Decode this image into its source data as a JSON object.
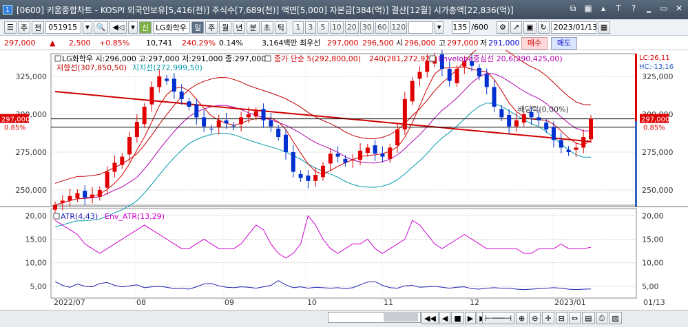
{
  "window": {
    "app_number": "1",
    "title": "[0600] 키움종합차트 - KOSPI 외국인보유[5,416(천)] 주식수[7,689(천)] 액면[5,000] 자본금[384(억)] 결산[12월] 시가총액[22,836(억)]"
  },
  "toolbar": {
    "period_day": "주",
    "type": "전",
    "code": "051915",
    "stock_name": "LG화학우",
    "stock_prefix": "신",
    "periods": [
      "일",
      "주",
      "월",
      "년",
      "분",
      "초",
      "틱"
    ],
    "active_period": "일",
    "minutes": [
      "1",
      "3",
      "5",
      "10",
      "20",
      "30",
      "60",
      "120"
    ],
    "count": "135",
    "total": "/600",
    "date": "2023/01/13"
  },
  "info": {
    "price": "297,000",
    "arrow": "▲",
    "change": "2,500",
    "change_pct": "+0.85%",
    "volume": "10,741",
    "volume_ratio": "240.29%",
    "turnover": "0.14%",
    "amount": "3,164백만",
    "best_ask_label": "최우선",
    "best_ask": "297,000",
    "best_bid": "296,500",
    "open_label": "시",
    "open": "296,000",
    "high_label": "고",
    "high": "297,000",
    "low_label": "저",
    "low": "291,000",
    "buy_label": "매수",
    "sell_label": "매도"
  },
  "chart": {
    "legend_line1_main": "LG화학우 시:296,000 고:297,000 저:291,000 종:297,000",
    "legend_line1_ma": "종가 단순 5(292,800,00)",
    "legend_line1_ma240": "240(281,272,92)",
    "legend_line1_env": "Envelope중심선 20,6(290,425,00)",
    "legend_line2_resist": "저항선(307,850,50)",
    "legend_line2_support": "지지선(272,999,50)",
    "dividend_label": "배당락(0,00%)",
    "lc_label": "LC:26,11",
    "hc_label": "HC:-13,16",
    "current_price_tag": "297,000",
    "current_pct_tag": "0.85%",
    "y_ticks": [
      "325,000",
      "300,000",
      "275,000",
      "250,000"
    ],
    "atr_legend_atr": "ATR(4,43)",
    "atr_legend_env": "Env_ATR(13,29)",
    "atr_ticks": [
      "20,00",
      "15,00",
      "10,00",
      "5,00"
    ],
    "x_ticks": [
      "2022/07",
      "08",
      "09",
      "10",
      "11",
      "12",
      "2023/01"
    ],
    "x_last": "01/13",
    "colors": {
      "up": "#e00000",
      "down": "#0030d0",
      "ma5": "#d00000",
      "ma240": "#d00000",
      "env_center": "#b000b0",
      "resist": "#c00000",
      "support": "#009aa8",
      "atr": "#2020b0",
      "env_atr": "#d000d0"
    }
  },
  "chart_data": {
    "type": "candlestick",
    "price_axis": [
      240000,
      340000
    ],
    "candles_close": [
      240000,
      243000,
      246000,
      248000,
      245000,
      247000,
      250000,
      262000,
      268000,
      272000,
      285000,
      295000,
      305000,
      318000,
      325000,
      322000,
      315000,
      310000,
      305000,
      298000,
      292000,
      290000,
      296000,
      294000,
      292000,
      298000,
      300000,
      302000,
      296000,
      292000,
      285000,
      275000,
      262000,
      258000,
      256000,
      260000,
      266000,
      274000,
      272000,
      268000,
      270000,
      276000,
      278000,
      274000,
      272000,
      278000,
      290000,
      310000,
      322000,
      328000,
      335000,
      338000,
      330000,
      322000,
      330000,
      335000,
      332000,
      325000,
      318000,
      305000,
      298000,
      292000,
      296000,
      300000,
      298000,
      296000,
      290000,
      283000,
      278000,
      275000,
      278000,
      285000,
      297000
    ],
    "atr_values": [
      6.0,
      5.2,
      4.8,
      5.5,
      5.0,
      4.9,
      5.6,
      5.8,
      5.2,
      4.9,
      5.1,
      5.3,
      4.7,
      4.9,
      5.0,
      4.8,
      4.5,
      4.6,
      4.4,
      4.9,
      5.5,
      5.6,
      5.1,
      4.8,
      4.7,
      4.9,
      4.8,
      4.6,
      4.9,
      5.2,
      6.2,
      5.3,
      4.7,
      4.9,
      4.6,
      4.8,
      4.7,
      4.6,
      4.7,
      4.5,
      4.7,
      5.3,
      5.9,
      6.0,
      5.2,
      4.7,
      4.6,
      5.1,
      5.2,
      4.8,
      4.9,
      5.0,
      4.8,
      4.6,
      4.8,
      4.9,
      4.5,
      4.4,
      4.6,
      4.7,
      4.6,
      4.6,
      4.4,
      4.3,
      4.4,
      4.5,
      4.6,
      4.7,
      4.6,
      4.4,
      4.3,
      4.4,
      4.43
    ],
    "env_atr_values": [
      19,
      18,
      17,
      16,
      14,
      13,
      12,
      13,
      14,
      15,
      16,
      17,
      18,
      17,
      16,
      15,
      14,
      13,
      13,
      14,
      15,
      14,
      13,
      13,
      13,
      14,
      16,
      18,
      17,
      14,
      12,
      11,
      12,
      14,
      20,
      18,
      15,
      13,
      12,
      13,
      14,
      14,
      15,
      13,
      12,
      13,
      14,
      15,
      19,
      18,
      16,
      14,
      13,
      14,
      15,
      16,
      15,
      14,
      13,
      13,
      13,
      13,
      13,
      12,
      12,
      13,
      13,
      13,
      14,
      13,
      13,
      13,
      13.29
    ]
  },
  "bottom": {
    "nav_symbols": [
      "◀◀",
      "◀",
      "■",
      "▶",
      "▶▶"
    ]
  }
}
